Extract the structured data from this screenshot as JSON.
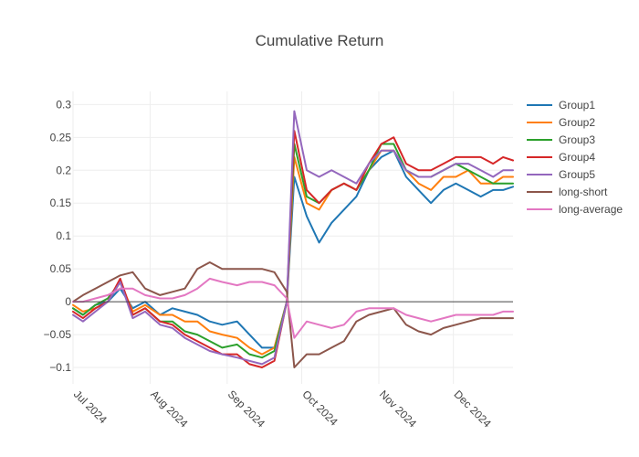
{
  "chart_data": {
    "type": "line",
    "title": "Cumulative Return",
    "xlabel": "",
    "ylabel": "",
    "ylim": [
      -0.125,
      0.32
    ],
    "xlim": [
      "2024-07-01",
      "2024-12-25"
    ],
    "yticks": [
      -0.1,
      -0.05,
      0,
      0.05,
      0.1,
      0.15,
      0.2,
      0.25,
      0.3
    ],
    "ytick_labels": [
      "−0.1",
      "−0.05",
      "0",
      "0.05",
      "0.1",
      "0.15",
      "0.2",
      "0.25",
      "0.3"
    ],
    "xticks": [
      {
        "label": "Jul 2024",
        "date": "2024-07-01"
      },
      {
        "label": "Aug 2024",
        "date": "2024-08-01"
      },
      {
        "label": "Sep 2024",
        "date": "2024-09-01"
      },
      {
        "label": "Oct 2024",
        "date": "2024-10-01"
      },
      {
        "label": "Nov 2024",
        "date": "2024-11-01"
      },
      {
        "label": "Dec 2024",
        "date": "2024-12-01"
      }
    ],
    "grid": true,
    "zero_line": true,
    "legend_position": "right",
    "x": [
      "2024-07-01",
      "2024-07-05",
      "2024-07-10",
      "2024-07-15",
      "2024-07-20",
      "2024-07-25",
      "2024-07-30",
      "2024-08-05",
      "2024-08-10",
      "2024-08-15",
      "2024-08-20",
      "2024-08-25",
      "2024-08-30",
      "2024-09-05",
      "2024-09-10",
      "2024-09-15",
      "2024-09-20",
      "2024-09-25",
      "2024-09-28",
      "2024-10-03",
      "2024-10-08",
      "2024-10-13",
      "2024-10-18",
      "2024-10-23",
      "2024-10-28",
      "2024-11-02",
      "2024-11-07",
      "2024-11-12",
      "2024-11-17",
      "2024-11-22",
      "2024-11-27",
      "2024-12-02",
      "2024-12-07",
      "2024-12-12",
      "2024-12-17",
      "2024-12-21",
      "2024-12-25"
    ],
    "series": [
      {
        "name": "Group1",
        "color": "#1f77b4",
        "values": [
          -0.01,
          -0.02,
          -0.005,
          0.0,
          0.02,
          -0.01,
          0.0,
          -0.02,
          -0.01,
          -0.015,
          -0.02,
          -0.03,
          -0.035,
          -0.03,
          -0.05,
          -0.07,
          -0.07,
          0.0,
          0.19,
          0.13,
          0.09,
          0.12,
          0.14,
          0.16,
          0.2,
          0.22,
          0.23,
          0.19,
          0.17,
          0.15,
          0.17,
          0.18,
          0.17,
          0.16,
          0.17,
          0.17,
          0.175
        ]
      },
      {
        "name": "Group2",
        "color": "#ff7f0e",
        "values": [
          -0.005,
          -0.015,
          -0.01,
          0.0,
          0.03,
          -0.015,
          -0.005,
          -0.02,
          -0.02,
          -0.03,
          -0.03,
          -0.045,
          -0.05,
          -0.055,
          -0.07,
          -0.08,
          -0.07,
          0.0,
          0.22,
          0.15,
          0.14,
          0.17,
          0.18,
          0.17,
          0.2,
          0.23,
          0.23,
          0.2,
          0.18,
          0.17,
          0.19,
          0.19,
          0.2,
          0.18,
          0.18,
          0.19,
          0.19
        ]
      },
      {
        "name": "Group3",
        "color": "#2ca02c",
        "values": [
          -0.01,
          -0.02,
          -0.005,
          0.005,
          0.03,
          -0.02,
          -0.01,
          -0.03,
          -0.03,
          -0.045,
          -0.05,
          -0.06,
          -0.07,
          -0.065,
          -0.08,
          -0.085,
          -0.075,
          0.0,
          0.24,
          0.16,
          0.15,
          0.17,
          0.18,
          0.17,
          0.2,
          0.24,
          0.24,
          0.2,
          0.19,
          0.19,
          0.2,
          0.21,
          0.2,
          0.19,
          0.18,
          0.18,
          0.18
        ]
      },
      {
        "name": "Group4",
        "color": "#d62728",
        "values": [
          -0.015,
          -0.025,
          -0.01,
          0.0,
          0.035,
          -0.02,
          -0.01,
          -0.03,
          -0.035,
          -0.05,
          -0.06,
          -0.07,
          -0.08,
          -0.08,
          -0.095,
          -0.1,
          -0.09,
          0.0,
          0.26,
          0.17,
          0.15,
          0.17,
          0.18,
          0.17,
          0.21,
          0.24,
          0.25,
          0.21,
          0.2,
          0.2,
          0.21,
          0.22,
          0.22,
          0.22,
          0.21,
          0.22,
          0.215
        ]
      },
      {
        "name": "Group5",
        "color": "#9467bd",
        "values": [
          -0.02,
          -0.03,
          -0.015,
          0.0,
          0.03,
          -0.025,
          -0.015,
          -0.035,
          -0.04,
          -0.055,
          -0.065,
          -0.075,
          -0.08,
          -0.085,
          -0.09,
          -0.095,
          -0.085,
          0.0,
          0.29,
          0.2,
          0.19,
          0.2,
          0.19,
          0.18,
          0.21,
          0.23,
          0.23,
          0.2,
          0.19,
          0.19,
          0.2,
          0.21,
          0.21,
          0.2,
          0.19,
          0.2,
          0.2
        ]
      },
      {
        "name": "long-short",
        "color": "#8c564b",
        "values": [
          0.0,
          0.01,
          0.02,
          0.03,
          0.04,
          0.045,
          0.02,
          0.01,
          0.015,
          0.02,
          0.05,
          0.06,
          0.05,
          0.05,
          0.05,
          0.05,
          0.045,
          0.015,
          -0.1,
          -0.08,
          -0.08,
          -0.07,
          -0.06,
          -0.03,
          -0.02,
          -0.015,
          -0.01,
          -0.035,
          -0.045,
          -0.05,
          -0.04,
          -0.035,
          -0.03,
          -0.025,
          -0.025,
          -0.025,
          -0.025
        ]
      },
      {
        "name": "long-average",
        "color": "#e377c2",
        "values": [
          0.0,
          0.0,
          0.005,
          0.01,
          0.02,
          0.02,
          0.01,
          0.005,
          0.005,
          0.01,
          0.02,
          0.035,
          0.03,
          0.025,
          0.03,
          0.03,
          0.025,
          0.005,
          -0.055,
          -0.03,
          -0.035,
          -0.04,
          -0.035,
          -0.015,
          -0.01,
          -0.01,
          -0.01,
          -0.02,
          -0.025,
          -0.03,
          -0.025,
          -0.02,
          -0.02,
          -0.02,
          -0.02,
          -0.015,
          -0.015
        ]
      }
    ]
  }
}
